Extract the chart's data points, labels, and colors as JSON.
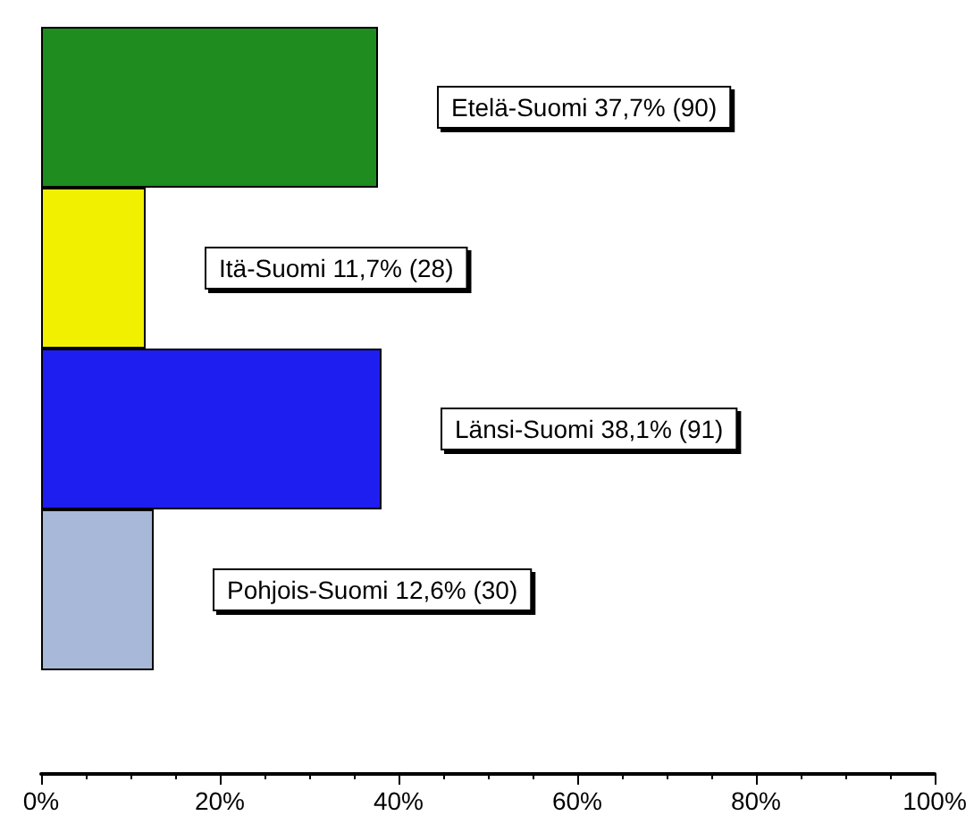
{
  "chart_data": {
    "type": "bar",
    "orientation": "horizontal",
    "categories": [
      null,
      null,
      null,
      null
    ],
    "values": [
      37.7,
      11.7,
      38.1,
      12.6
    ],
    "colors": [
      "#1e8c1e",
      "#f0f000",
      "#1e1ef0",
      "#a8b8d8"
    ],
    "value_labels": [
      "Etelä-Suomi 37,7% (90)",
      "Itä-Suomi 11,7% (28)",
      "Länsi-Suomi 38,1% (91)",
      "Pohjois-Suomi 12,6% (30)"
    ],
    "xlim": [
      0,
      100
    ],
    "xticks": [
      {
        "value": 0,
        "label": "0%"
      },
      {
        "value": 20,
        "label": "20%"
      },
      {
        "value": 40,
        "label": "40%"
      },
      {
        "value": 60,
        "label": "60%"
      },
      {
        "value": 80,
        "label": "80%"
      },
      {
        "value": 100,
        "label": "100%"
      }
    ],
    "grid": false
  }
}
